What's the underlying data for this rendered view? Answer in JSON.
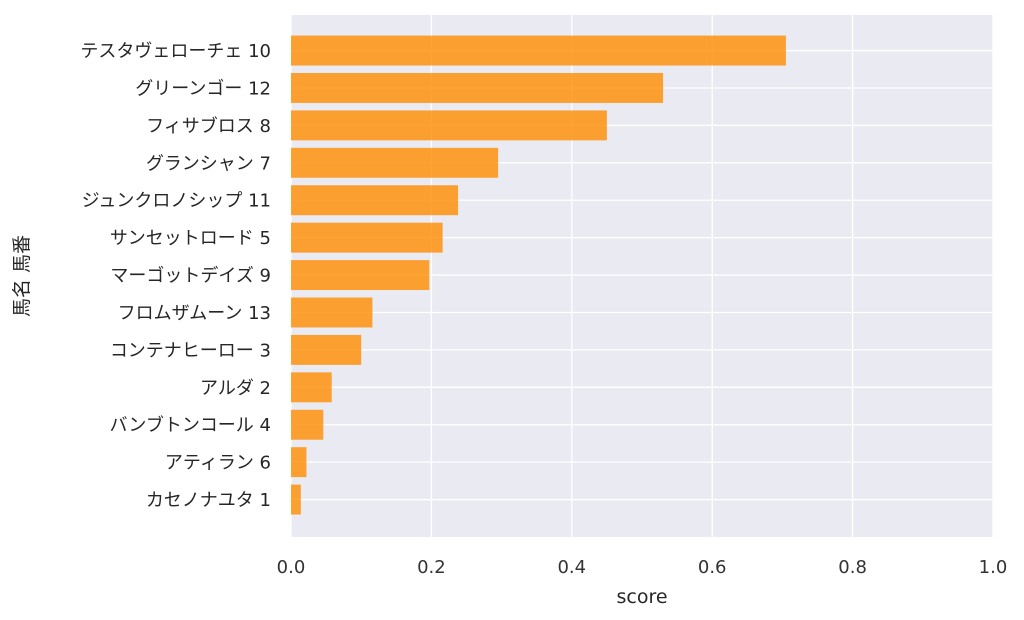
{
  "chart_data": {
    "type": "bar",
    "orientation": "horizontal",
    "xlabel": "score",
    "ylabel": "馬名 馬番",
    "xlim": [
      0,
      1.0
    ],
    "xticks": [
      "0.0",
      "0.2",
      "0.4",
      "0.6",
      "0.8",
      "1.0"
    ],
    "grid": true,
    "bar_color": "#ff8c00",
    "background_color": "#eaeaf2",
    "categories": [
      "テスタヴェローチェ 10",
      "グリーンゴー 12",
      "フィサブロス 8",
      "グランシャン 7",
      "ジュンクロノシップ 11",
      "サンセットロード 5",
      "マーゴットデイズ 9",
      "フロムザムーン 13",
      "コンテナヒーロー 3",
      "アルダ 2",
      "バンブトンコール 4",
      "アティラン 6",
      "カセノナユタ 1"
    ],
    "values": [
      0.705,
      0.53,
      0.45,
      0.295,
      0.238,
      0.216,
      0.197,
      0.116,
      0.1,
      0.058,
      0.046,
      0.022,
      0.014
    ]
  }
}
